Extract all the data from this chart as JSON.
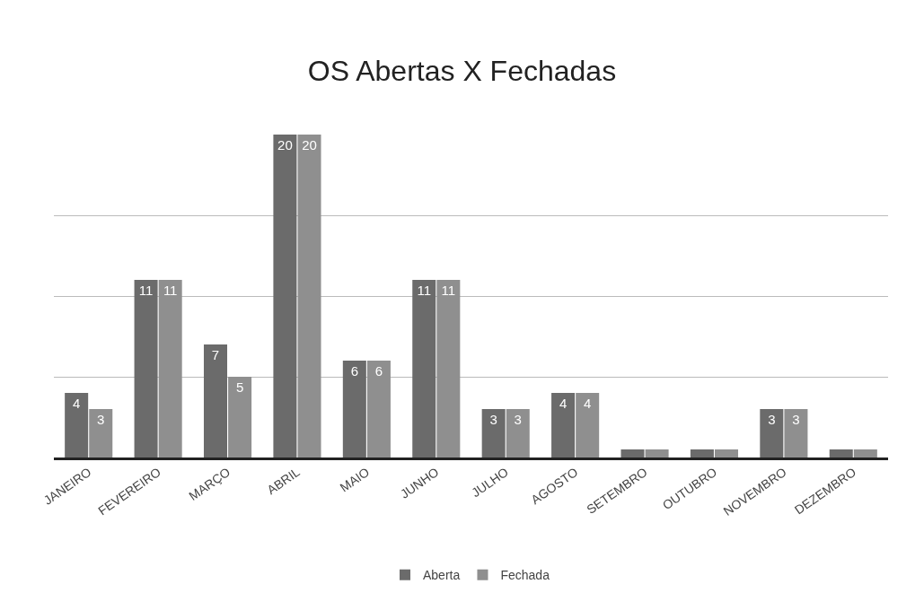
{
  "chart_data": {
    "type": "bar",
    "title": "OS Abertas X Fechadas",
    "categories": [
      "JANEIRO",
      "FEVEREIRO",
      "MARÇO",
      "ABRIL",
      "MAIO",
      "JUNHO",
      "JULHO",
      "AGOSTO",
      "SETEMBRO",
      "OUTUBRO",
      "NOVEMBRO",
      "DEZEMBRO"
    ],
    "series": [
      {
        "name": "Aberta",
        "color": "#6b6b6b",
        "values": [
          4,
          11,
          7,
          20,
          6,
          11,
          3,
          4,
          0.5,
          0.5,
          3,
          0.5
        ],
        "value_labels": [
          "4",
          "11",
          "7",
          "20",
          "6",
          "11",
          "3",
          "4",
          null,
          null,
          "3",
          null
        ]
      },
      {
        "name": "Fechada",
        "color": "#8f8f8f",
        "values": [
          3,
          11,
          5,
          20,
          6,
          11,
          3,
          4,
          0.5,
          0.5,
          3,
          0.5
        ],
        "value_labels": [
          "3",
          "11",
          "5",
          "20",
          "6",
          "11",
          "3",
          "4",
          null,
          null,
          "3",
          null
        ]
      }
    ],
    "ylim": [
      0,
      20
    ],
    "yticks": [
      {
        "value": 5,
        "label": null
      },
      {
        "value": 10,
        "label": null
      },
      {
        "value": 15,
        "label": null
      }
    ],
    "grid": "y",
    "legend": "bottom"
  }
}
